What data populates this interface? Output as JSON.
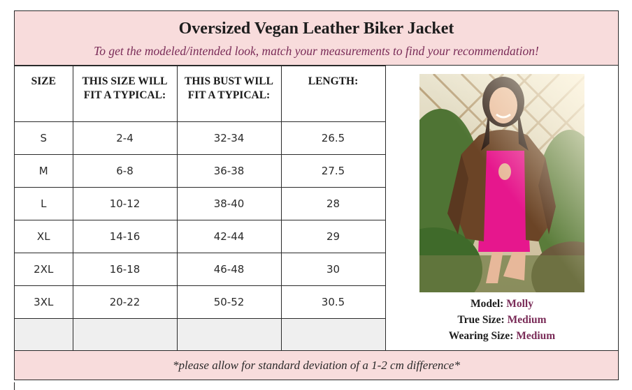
{
  "header": {
    "title": "Oversized Vegan Leather Biker Jacket",
    "subtitle": "To get the modeled/intended look, match your measurements to find your recommendation!"
  },
  "table": {
    "columns": [
      "SIZE",
      "THIS SIZE WILL FIT A TYPICAL:",
      "THIS BUST WILL FIT A TYPICAL:",
      "LENGTH:"
    ],
    "rows": [
      [
        "S",
        "2-4",
        "32-34",
        "26.5"
      ],
      [
        "M",
        "6-8",
        "36-38",
        "27.5"
      ],
      [
        "L",
        "10-12",
        "38-40",
        "28"
      ],
      [
        "XL",
        "14-16",
        "42-44",
        "29"
      ],
      [
        "2XL",
        "16-18",
        "46-48",
        "30"
      ],
      [
        "3XL",
        "20-22",
        "50-52",
        "30.5"
      ],
      [
        "",
        "",
        "",
        ""
      ]
    ]
  },
  "model": {
    "model_label": "Model:",
    "model_name": "Molly",
    "true_size_label": "True Size:",
    "true_size": "Medium",
    "wearing_size_label": "Wearing Size:",
    "wearing_size": "Medium"
  },
  "footer": {
    "note": "*please allow for standard deviation of a 1-2 cm difference*"
  },
  "colors": {
    "header_bg": "#f8dcdc",
    "accent": "#7a2c58",
    "blank_row_bg": "#efefef"
  }
}
